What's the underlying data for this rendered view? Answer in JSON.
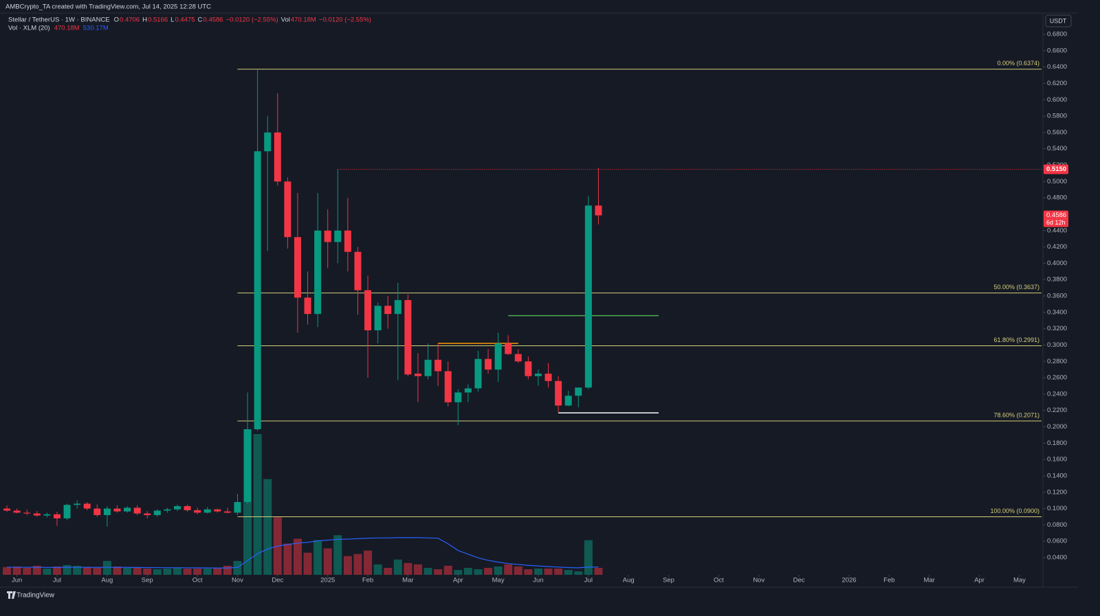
{
  "chart_data": {
    "type": "candlestick",
    "credit": "AMBCrypto_TA created with TradingView.com, Jul 14, 2025 12:28 UTC",
    "title": "Stellar / TetherUS · 1W · BINANCE",
    "legend": [
      {
        "key": "O",
        "value": "0.4706"
      },
      {
        "key": "H",
        "value": "0.5166"
      },
      {
        "key": "L",
        "value": "0.4475"
      },
      {
        "key": "C",
        "value": "0.4586"
      },
      {
        "key": "",
        "value": "−0.0120 (−2.55%)"
      },
      {
        "key": "Vol",
        "value": "470.18M"
      },
      {
        "key": "",
        "value": "−0.0120 (−2.55%)"
      }
    ],
    "volume_legend": {
      "title": "Vol · XLM (20)",
      "volume": "470.18M",
      "ma": "530.17M"
    },
    "currency": "USDT",
    "footer": "TradingView",
    "up_color": "#089981",
    "down_color": "#f23645",
    "ma_color": "#2962ff",
    "grid": false,
    "xlim": [
      -0.69,
      103.2
    ],
    "xticks": [
      {
        "value": 1,
        "label": "Jun"
      },
      {
        "value": 5,
        "label": "Jul"
      },
      {
        "value": 10,
        "label": "Aug"
      },
      {
        "value": 14,
        "label": "Sep"
      },
      {
        "value": 19,
        "label": "Oct"
      },
      {
        "value": 23,
        "label": "Nov"
      },
      {
        "value": 27,
        "label": "Dec"
      },
      {
        "value": 32,
        "label": "2025"
      },
      {
        "value": 36,
        "label": "Feb"
      },
      {
        "value": 40,
        "label": "Mar"
      },
      {
        "value": 45,
        "label": "Apr"
      },
      {
        "value": 49,
        "label": "May"
      },
      {
        "value": 53,
        "label": "Jun"
      },
      {
        "value": 58,
        "label": "Jul"
      },
      {
        "value": 62,
        "label": "Aug"
      },
      {
        "value": 66,
        "label": "Sep"
      },
      {
        "value": 71,
        "label": "Oct"
      },
      {
        "value": 75,
        "label": "Nov"
      },
      {
        "value": 79,
        "label": "Dec"
      },
      {
        "value": 84,
        "label": "2026"
      },
      {
        "value": 88,
        "label": "Feb"
      },
      {
        "value": 92,
        "label": "Mar"
      },
      {
        "value": 97,
        "label": "Apr"
      },
      {
        "value": 101,
        "label": "May"
      }
    ],
    "ylim": [
      0.019,
      0.7052
    ],
    "yticks": [
      {
        "value": 0.68,
        "label": "0.6800"
      },
      {
        "value": 0.66,
        "label": "0.6600"
      },
      {
        "value": 0.64,
        "label": "0.6400"
      },
      {
        "value": 0.62,
        "label": "0.6200"
      },
      {
        "value": 0.6,
        "label": "0.6000"
      },
      {
        "value": 0.58,
        "label": "0.5800"
      },
      {
        "value": 0.56,
        "label": "0.5600"
      },
      {
        "value": 0.54,
        "label": "0.5400"
      },
      {
        "value": 0.52,
        "label": "0.5200"
      },
      {
        "value": 0.5,
        "label": "0.5000"
      },
      {
        "value": 0.48,
        "label": "0.4800"
      },
      {
        "value": 0.46,
        "label": "0.4600"
      },
      {
        "value": 0.44,
        "label": "0.4400"
      },
      {
        "value": 0.42,
        "label": "0.4200"
      },
      {
        "value": 0.4,
        "label": "0.4000"
      },
      {
        "value": 0.38,
        "label": "0.3800"
      },
      {
        "value": 0.36,
        "label": "0.3600"
      },
      {
        "value": 0.34,
        "label": "0.3400"
      },
      {
        "value": 0.32,
        "label": "0.3200"
      },
      {
        "value": 0.3,
        "label": "0.3000"
      },
      {
        "value": 0.28,
        "label": "0.2800"
      },
      {
        "value": 0.26,
        "label": "0.2600"
      },
      {
        "value": 0.24,
        "label": "0.2400"
      },
      {
        "value": 0.22,
        "label": "0.2200"
      },
      {
        "value": 0.2,
        "label": "0.2000"
      },
      {
        "value": 0.18,
        "label": "0.1800"
      },
      {
        "value": 0.16,
        "label": "0.1600"
      },
      {
        "value": 0.14,
        "label": "0.1400"
      },
      {
        "value": 0.12,
        "label": "0.1200"
      },
      {
        "value": 0.1,
        "label": "0.1000"
      },
      {
        "value": 0.08,
        "label": "0.0800"
      },
      {
        "value": 0.06,
        "label": "0.0600"
      },
      {
        "value": 0.04,
        "label": "0.0400"
      }
    ],
    "series": {
      "open": [
        0.1,
        0.0975,
        0.095,
        0.094,
        0.0915,
        0.093,
        0.088,
        0.1045,
        0.106,
        0.1,
        0.092,
        0.1,
        0.0965,
        0.101,
        0.094,
        0.092,
        0.0975,
        0.099,
        0.103,
        0.098,
        0.095,
        0.099,
        0.0965,
        0.095,
        0.108,
        0.197,
        0.537,
        0.56,
        0.5,
        0.432,
        0.358,
        0.338,
        0.44,
        0.426,
        0.44,
        0.414,
        0.367,
        0.318,
        0.348,
        0.338,
        0.355,
        0.265,
        0.262,
        0.282,
        0.268,
        0.23,
        0.242,
        0.247,
        0.283,
        0.27,
        0.302,
        0.289,
        0.28,
        0.262,
        0.265,
        0.256,
        0.226,
        0.238,
        0.248,
        0.4706
      ],
      "high": [
        0.104,
        0.1,
        0.0985,
        0.097,
        0.095,
        0.096,
        0.106,
        0.11,
        0.108,
        0.105,
        0.103,
        0.104,
        0.103,
        0.104,
        0.097,
        0.099,
        0.101,
        0.105,
        0.105,
        0.101,
        0.102,
        0.1,
        0.101,
        0.118,
        0.242,
        0.6374,
        0.58,
        0.608,
        0.505,
        0.486,
        0.39,
        0.486,
        0.466,
        0.515,
        0.48,
        0.42,
        0.385,
        0.352,
        0.36,
        0.376,
        0.362,
        0.29,
        0.302,
        0.302,
        0.28,
        0.246,
        0.252,
        0.293,
        0.295,
        0.315,
        0.312,
        0.295,
        0.286,
        0.27,
        0.278,
        0.262,
        0.244,
        0.248,
        0.482,
        0.5166
      ],
      "low": [
        0.096,
        0.094,
        0.092,
        0.09,
        0.089,
        0.079,
        0.086,
        0.1,
        0.098,
        0.09,
        0.078,
        0.095,
        0.095,
        0.092,
        0.088,
        0.09,
        0.095,
        0.097,
        0.096,
        0.093,
        0.094,
        0.095,
        0.094,
        0.092,
        0.106,
        0.195,
        0.415,
        0.495,
        0.418,
        0.315,
        0.325,
        0.322,
        0.394,
        0.4,
        0.39,
        0.337,
        0.26,
        0.302,
        0.32,
        0.257,
        0.262,
        0.23,
        0.258,
        0.25,
        0.225,
        0.202,
        0.23,
        0.243,
        0.265,
        0.255,
        0.288,
        0.278,
        0.258,
        0.25,
        0.248,
        0.218,
        0.225,
        0.224,
        0.246,
        0.4475
      ],
      "close": [
        0.0975,
        0.095,
        0.094,
        0.0915,
        0.093,
        0.088,
        0.1045,
        0.106,
        0.1,
        0.092,
        0.1,
        0.0965,
        0.101,
        0.094,
        0.092,
        0.0975,
        0.099,
        0.103,
        0.098,
        0.095,
        0.099,
        0.0965,
        0.095,
        0.108,
        0.197,
        0.537,
        0.56,
        0.5,
        0.432,
        0.358,
        0.338,
        0.44,
        0.426,
        0.44,
        0.414,
        0.367,
        0.318,
        0.348,
        0.338,
        0.355,
        0.264,
        0.262,
        0.282,
        0.268,
        0.23,
        0.242,
        0.247,
        0.283,
        0.27,
        0.302,
        0.289,
        0.28,
        0.262,
        0.265,
        0.256,
        0.226,
        0.238,
        0.248,
        0.4706,
        0.4586
      ]
    },
    "volume": [
      520,
      560,
      470,
      610,
      420,
      560,
      660,
      610,
      520,
      470,
      940,
      560,
      470,
      520,
      420,
      380,
      420,
      470,
      420,
      420,
      420,
      470,
      610,
      940,
      9870,
      9540,
      6490,
      3900,
      2115,
      2444,
      1500,
      2350,
      1786,
      2680,
      1270,
      1410,
      1645,
      705,
      470,
      1034,
      800,
      705,
      470,
      376,
      611,
      329,
      470,
      376,
      470,
      564,
      705,
      564,
      376,
      423,
      423,
      423,
      329,
      235,
      2350,
      470.18
    ],
    "volume_ma": [
      520,
      515,
      510,
      505,
      500,
      500,
      505,
      510,
      505,
      500,
      510,
      505,
      500,
      495,
      490,
      485,
      480,
      480,
      475,
      470,
      465,
      460,
      460,
      500,
      960,
      1430,
      1750,
      1950,
      2050,
      2150,
      2200,
      2300,
      2350,
      2400,
      2420,
      2450,
      2480,
      2500,
      2500,
      2520,
      2520,
      2520,
      2500,
      2480,
      2100,
      1650,
      1400,
      1150,
      980,
      860,
      760,
      700,
      640,
      600,
      560,
      520,
      490,
      470,
      530,
      530.17
    ],
    "fib_levels": [
      {
        "value": 0.6374,
        "label": "0.00% (0.6374)"
      },
      {
        "value": 0.3637,
        "label": "50.00% (0.3637)"
      },
      {
        "value": 0.2991,
        "label": "61.80% (0.2991)"
      },
      {
        "value": 0.2071,
        "label": "78.60% (0.2071)"
      },
      {
        "value": 0.09,
        "label": "100.00% (0.0900)"
      }
    ],
    "fib_from": 23,
    "fib_color": "#d4cf7a",
    "drawn_lines": [
      {
        "value": 0.336,
        "from": 50,
        "to": 65,
        "color": "#4caf50"
      },
      {
        "value": 0.302,
        "from": 43,
        "to": 51,
        "color": "#ff9800"
      },
      {
        "value": 0.217,
        "from": 55,
        "to": 65,
        "color": "#ffffff"
      }
    ],
    "high_marker": {
      "value": 0.515,
      "label": "0.5150",
      "from": 33
    },
    "last_price": {
      "value": 0.4586,
      "label": "0.4586",
      "countdown": "6d 12h"
    }
  }
}
